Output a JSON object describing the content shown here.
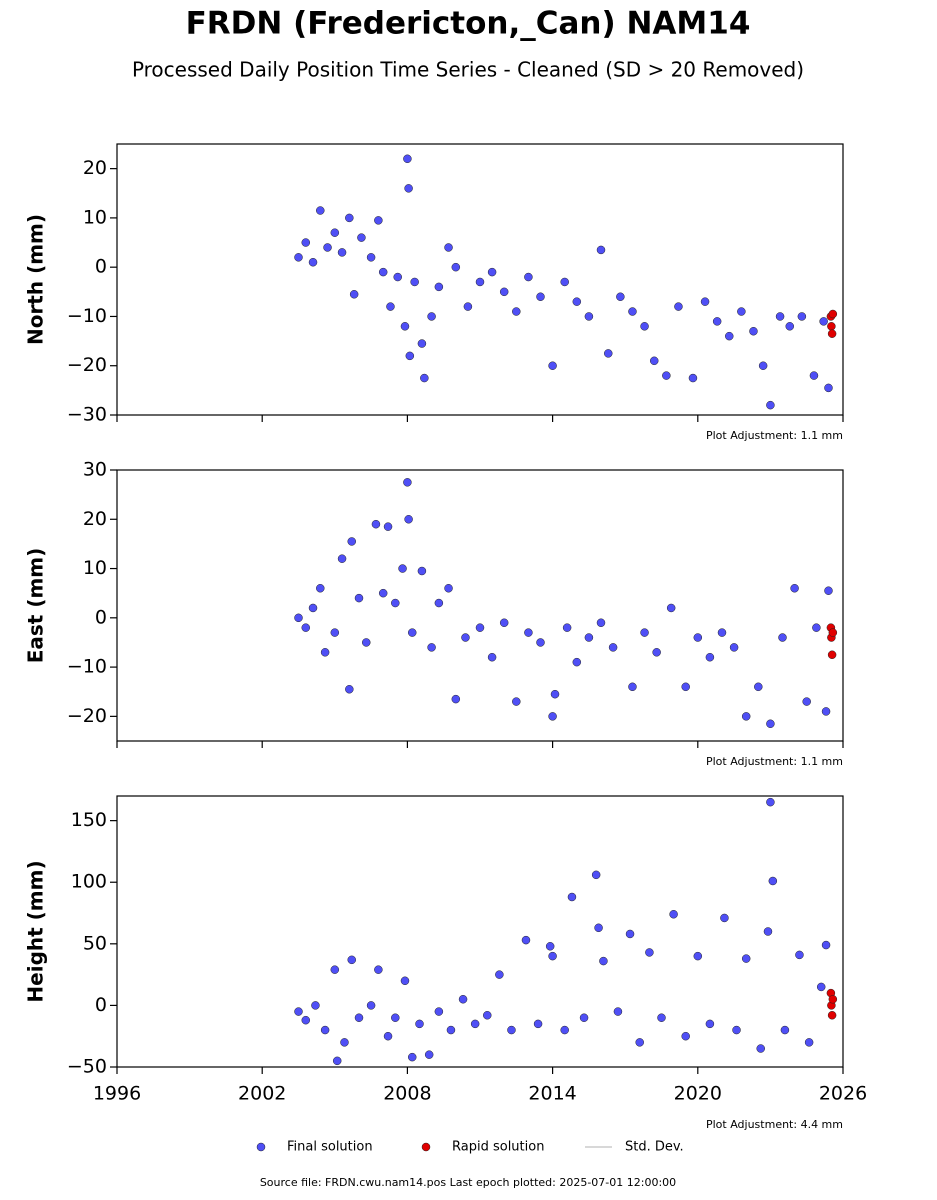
{
  "title": "FRDN (Fredericton,_Can) NAM14",
  "subtitle": "Processed Daily Position Time Series - Cleaned (SD > 20 Removed)",
  "footer": "Source file: FRDN.cwu.nam14.pos  Last epoch plotted: 2025-07-01 12:00:00",
  "legend": {
    "stddev_label": "Std. Dev.",
    "stddev_color": "#cccccc"
  },
  "chart_data": [
    {
      "type": "scatter",
      "ylabel": "North (mm)",
      "annotation": "Plot Adjustment: 1.1 mm",
      "xlim": [
        1996,
        2026
      ],
      "xticks": [
        1996,
        2002,
        2008,
        2014,
        2020,
        2026
      ],
      "xtick_labels": false,
      "ylim": [
        -30,
        25
      ],
      "yticks": [
        {
          "value": -30,
          "label": "−30"
        },
        {
          "value": -20,
          "label": "−20"
        },
        {
          "value": -10,
          "label": "−10"
        },
        0,
        10,
        20
      ],
      "series": [
        {
          "name": "Final solution",
          "color": "#4f4ff5",
          "x": [
            2003.5,
            2003.8,
            2004.1,
            2004.4,
            2004.7,
            2005.0,
            2005.3,
            2005.6,
            2005.8,
            2006.1,
            2006.5,
            2006.8,
            2007.0,
            2007.3,
            2007.6,
            2007.9,
            2008.0,
            2008.05,
            2008.1,
            2008.3,
            2008.6,
            2008.7,
            2009.0,
            2009.3,
            2009.7,
            2010.0,
            2010.5,
            2011.0,
            2011.5,
            2012.0,
            2012.5,
            2013.0,
            2013.5,
            2014.0,
            2014.5,
            2015.0,
            2015.5,
            2016.0,
            2016.3,
            2016.8,
            2017.3,
            2017.8,
            2018.2,
            2018.7,
            2019.2,
            2019.8,
            2020.3,
            2020.8,
            2021.3,
            2021.8,
            2022.3,
            2022.7,
            2023.0,
            2023.4,
            2023.8,
            2024.3,
            2024.8,
            2025.2,
            2025.4
          ],
          "values": [
            2,
            5,
            1,
            11.5,
            4,
            7,
            3,
            10,
            -5.5,
            6,
            2,
            9.5,
            -1,
            -8,
            -2,
            -12,
            22,
            16,
            -18,
            -3,
            -15.5,
            -22.5,
            -10,
            -4,
            4,
            0,
            -8,
            -3,
            -1,
            -5,
            -9,
            -2,
            -6,
            -20,
            -3,
            -7,
            -10,
            3.5,
            -17.5,
            -6,
            -9,
            -12,
            -19,
            -22,
            -8,
            -22.5,
            -7,
            -11,
            -14,
            -9,
            -13,
            -20,
            -28,
            -10,
            -12,
            -10,
            -22,
            -11,
            -24.5
          ]
        },
        {
          "name": "Rapid solution",
          "color": "#e00000",
          "x": [
            2025.5,
            2025.52,
            2025.55,
            2025.58
          ],
          "values": [
            -10,
            -12,
            -13.5,
            -9.5
          ]
        }
      ]
    },
    {
      "type": "scatter",
      "ylabel": "East (mm)",
      "annotation": "Plot Adjustment: 1.1 mm",
      "xlim": [
        1996,
        2026
      ],
      "xticks": [
        1996,
        2002,
        2008,
        2014,
        2020,
        2026
      ],
      "xtick_labels": false,
      "ylim": [
        -25,
        30
      ],
      "yticks": [
        {
          "value": -20,
          "label": "−20"
        },
        {
          "value": -10,
          "label": "−10"
        },
        0,
        10,
        20,
        30
      ],
      "series": [
        {
          "name": "Final solution",
          "color": "#4f4ff5",
          "x": [
            2003.5,
            2003.8,
            2004.1,
            2004.4,
            2004.6,
            2005.0,
            2005.3,
            2005.6,
            2005.7,
            2006.0,
            2006.3,
            2006.7,
            2007.0,
            2007.2,
            2007.5,
            2007.8,
            2008.0,
            2008.05,
            2008.2,
            2008.6,
            2009.0,
            2009.3,
            2009.7,
            2010.0,
            2010.4,
            2011.0,
            2011.5,
            2012.0,
            2012.5,
            2013.0,
            2013.5,
            2014.0,
            2014.1,
            2014.6,
            2015.0,
            2015.5,
            2016.0,
            2016.5,
            2017.3,
            2017.8,
            2018.3,
            2018.9,
            2019.5,
            2020.0,
            2020.5,
            2021.0,
            2021.5,
            2022.0,
            2022.5,
            2023.0,
            2023.5,
            2024.0,
            2024.5,
            2024.9,
            2025.3,
            2025.4
          ],
          "values": [
            0,
            -2,
            2,
            6,
            -7,
            -3,
            12,
            -14.5,
            15.5,
            4,
            -5,
            19,
            5,
            18.5,
            3,
            10,
            27.5,
            20,
            -3,
            9.5,
            -6,
            3,
            6,
            -16.5,
            -4,
            -2,
            -8,
            -1,
            -17,
            -3,
            -5,
            -20,
            -15.5,
            -2,
            -9,
            -4,
            -1,
            -6,
            -14,
            -3,
            -7,
            2,
            -14,
            -4,
            -8,
            -3,
            -6,
            -20,
            -14,
            -21.5,
            -4,
            6,
            -17,
            -2,
            -19,
            5.5
          ]
        },
        {
          "name": "Rapid solution",
          "color": "#e00000",
          "x": [
            2025.5,
            2025.52,
            2025.55,
            2025.58
          ],
          "values": [
            -2,
            -4,
            -7.5,
            -3
          ]
        }
      ]
    },
    {
      "type": "scatter",
      "ylabel": "Height (mm)",
      "annotation": "Plot Adjustment: 4.4 mm",
      "xlim": [
        1996,
        2026
      ],
      "xticks": [
        1996,
        2002,
        2008,
        2014,
        2020,
        2026
      ],
      "xtick_labels": true,
      "ylim": [
        -50,
        170
      ],
      "yticks": [
        {
          "value": -50,
          "label": "−50"
        },
        0,
        50,
        100,
        150
      ],
      "series": [
        {
          "name": "Final solution",
          "color": "#4f4ff5",
          "x": [
            2003.5,
            2003.8,
            2004.2,
            2004.6,
            2005.0,
            2005.1,
            2005.4,
            2005.7,
            2006.0,
            2006.5,
            2006.8,
            2007.2,
            2007.5,
            2007.9,
            2008.2,
            2008.5,
            2008.9,
            2009.3,
            2009.8,
            2010.3,
            2010.8,
            2011.3,
            2011.8,
            2012.3,
            2012.9,
            2013.4,
            2013.9,
            2014.0,
            2014.5,
            2014.8,
            2015.3,
            2015.8,
            2015.9,
            2016.1,
            2016.7,
            2017.2,
            2017.6,
            2018.0,
            2018.5,
            2019.0,
            2019.5,
            2020.0,
            2020.5,
            2021.1,
            2021.6,
            2022.0,
            2022.6,
            2022.9,
            2023.0,
            2023.1,
            2023.6,
            2024.2,
            2024.6,
            2025.1,
            2025.3
          ],
          "values": [
            -5,
            -12,
            0,
            -20,
            29,
            -45,
            -30,
            37,
            -10,
            0,
            29,
            -25,
            -10,
            20,
            -42,
            -15,
            -40,
            -5,
            -20,
            5,
            -15,
            -8,
            25,
            -20,
            53,
            -15,
            48,
            40,
            -20,
            88,
            -10,
            106,
            63,
            36,
            -5,
            58,
            -30,
            43,
            -10,
            74,
            -25,
            40,
            -15,
            71,
            -20,
            38,
            -35,
            60,
            165,
            101,
            -20,
            41,
            -30,
            15,
            49
          ]
        },
        {
          "name": "Rapid solution",
          "color": "#e00000",
          "x": [
            2025.5,
            2025.52,
            2025.55,
            2025.58
          ],
          "values": [
            10,
            0,
            -8,
            5
          ]
        }
      ]
    }
  ]
}
